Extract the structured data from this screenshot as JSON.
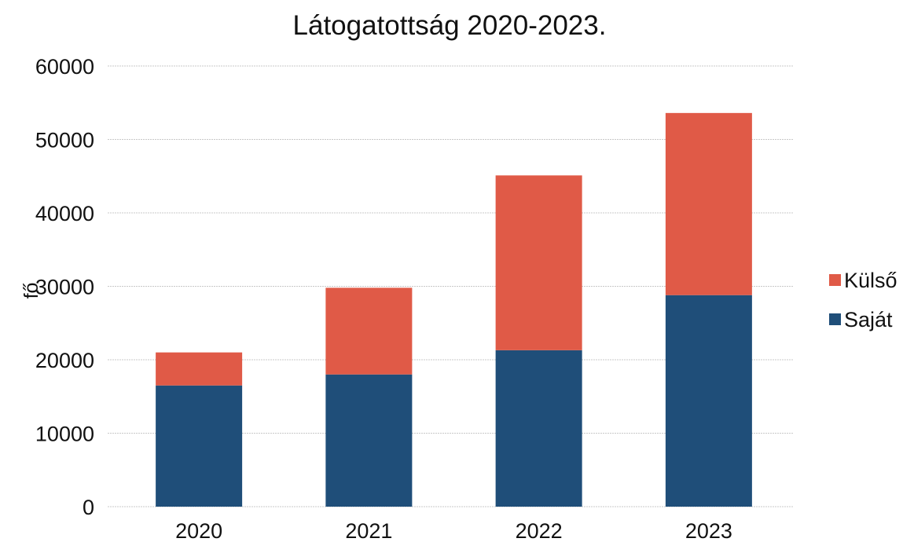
{
  "chart_data": {
    "type": "bar",
    "stacked": true,
    "title": "Látogatottság 2020-2023.",
    "xlabel": "",
    "ylabel": "fő",
    "ylim": [
      0,
      60000
    ],
    "yticks": [
      "0",
      "10000",
      "20000",
      "30000",
      "40000",
      "50000",
      "60000"
    ],
    "categories": [
      "2020",
      "2021",
      "2022",
      "2023"
    ],
    "series": [
      {
        "name": "Saját",
        "color": "#1f4e79",
        "values": [
          16500,
          18000,
          21300,
          28800
        ]
      },
      {
        "name": "Külső",
        "color": "#e05a47",
        "values": [
          4500,
          11800,
          23800,
          24800
        ]
      }
    ],
    "legend_position": "right",
    "grid": true
  }
}
